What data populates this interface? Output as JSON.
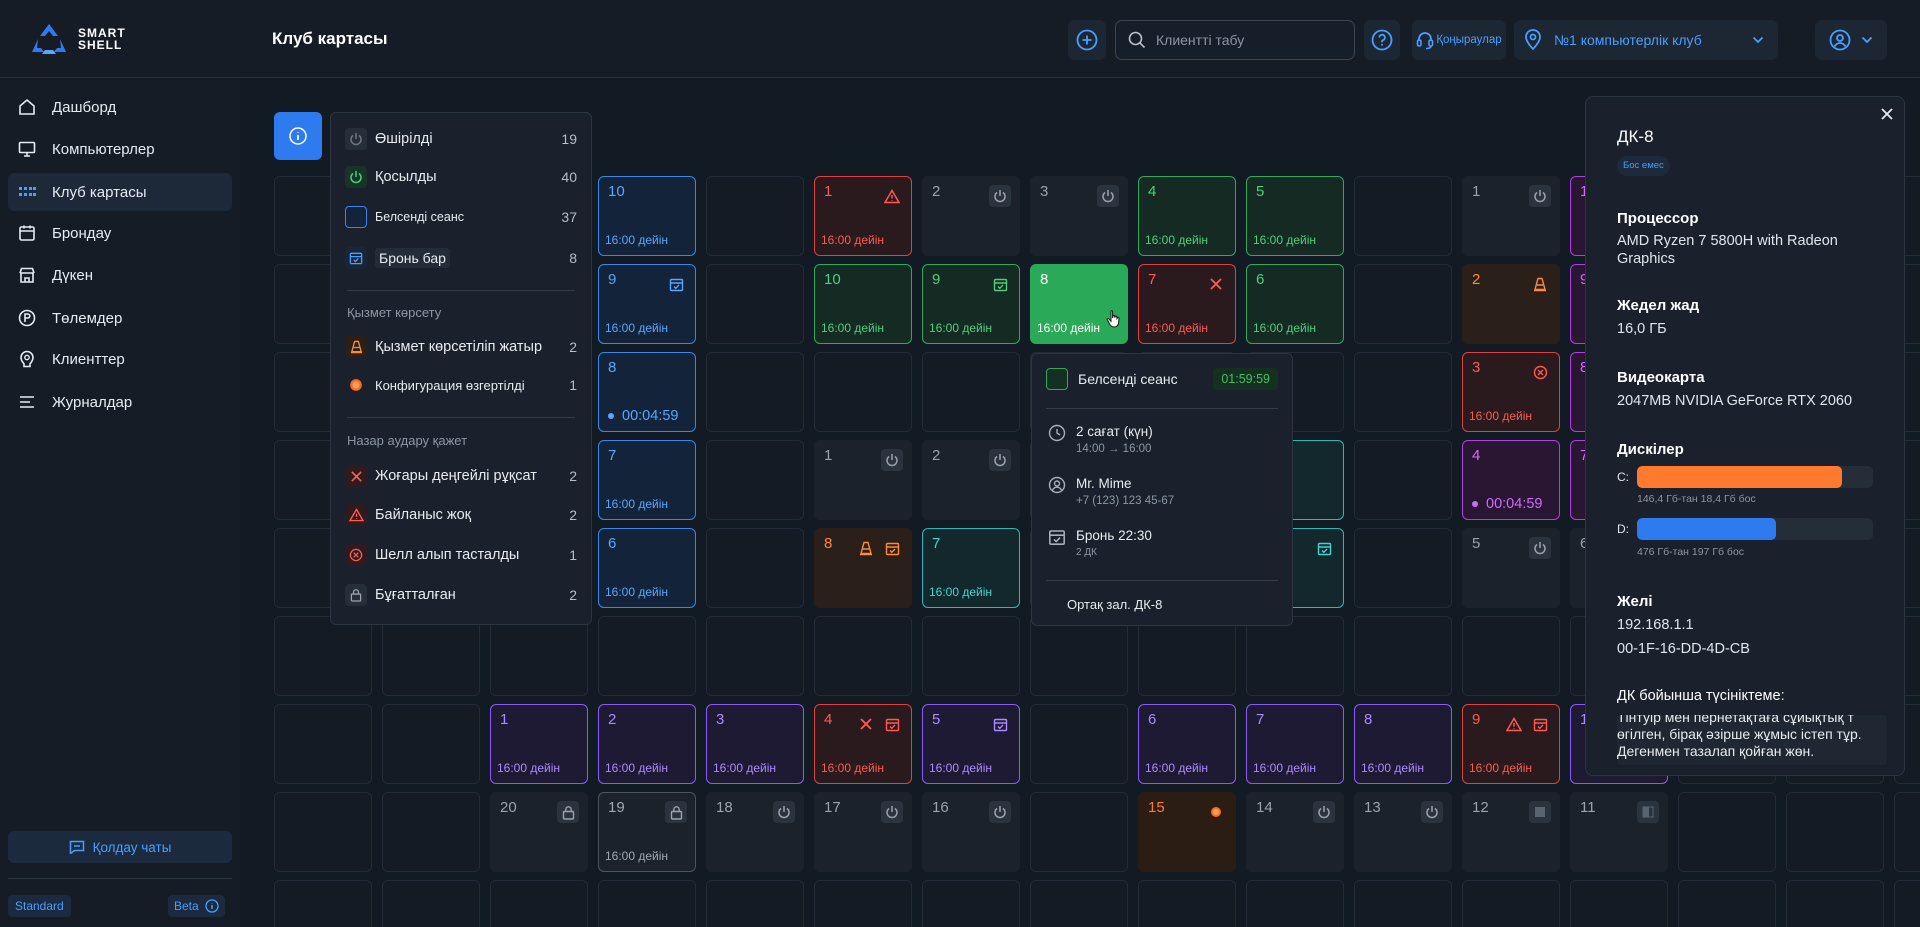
{
  "topbar": {
    "logo_line1": "SMART",
    "logo_line2": "SHELL",
    "title": "Клуб картасы",
    "search_placeholder": "Клиентті табу",
    "calls_label": "Қоңыраулар",
    "club_name": "№1 компьютерлік клуб"
  },
  "sidebar": {
    "items": [
      {
        "label": "Дашборд",
        "icon": "home-icon"
      },
      {
        "label": "Компьютерлер",
        "icon": "monitor-icon"
      },
      {
        "label": "Клуб картасы",
        "icon": "grid-icon"
      },
      {
        "label": "Брондау",
        "icon": "calendar-icon"
      },
      {
        "label": "Дүкен",
        "icon": "store-icon"
      },
      {
        "label": "Төлемдер",
        "icon": "payment-icon"
      },
      {
        "label": "Клиенттер",
        "icon": "client-icon"
      },
      {
        "label": "Журналдар",
        "icon": "log-icon"
      }
    ],
    "support_label": "Қолдау чаты",
    "plan_label": "Standard",
    "beta_label": "Beta"
  },
  "legend": {
    "off": {
      "label": "Өшірілді",
      "count": "19"
    },
    "on": {
      "label": "Қосылды",
      "count": "40"
    },
    "active": {
      "label": "Белсенді сеанс",
      "count": "37"
    },
    "booked": {
      "label": "Бронь бар",
      "count": "8"
    },
    "service_title": "Қызмет көрсету",
    "serviced": {
      "label": "Қызмет көрсетіліп жатыр",
      "count": "2"
    },
    "config": {
      "label": "Конфигурация өзгертілді",
      "count": "1"
    },
    "attention_title": "Назар аудару қажет",
    "high_priv": {
      "label": "Жоғары деңгейлі рұқсат",
      "count": "2"
    },
    "no_conn": {
      "label": "Байланыс жоқ",
      "count": "2"
    },
    "shell_removed": {
      "label": "Шелл алып тасталды",
      "count": "1"
    },
    "locked": {
      "label": "Бұғатталған",
      "count": "2"
    }
  },
  "popup": {
    "status": "Белсенді сеанс",
    "timer": "01:59:59",
    "duration": "2 сағат (күн)",
    "time_range": "14:00 → 16:00",
    "client_name": "Mr. Mime",
    "client_phone": "+7 (123) 123 45-67",
    "booking": "Бронь 22:30",
    "booking_sub": "2 ДК",
    "location": "Ортақ зал. ДК-8"
  },
  "detail": {
    "title": "ДК-8",
    "badge": "Бос емес",
    "cpu_label": "Процессор",
    "cpu_line1": "AMD Ryzen 7 5800H with Radeon",
    "cpu_line2": "Graphics",
    "ram_label": "Жедел жад",
    "ram_value": "16,0 ГБ",
    "gpu_label": "Видеокарта",
    "gpu_value": "2047MB NVIDIA GeForce RTX 2060",
    "disks_label": "Дискілер",
    "disk_c_letter": "C:",
    "disk_c_info": "146,4 Гб-тан 18,4 Гб бос",
    "disk_c_fill": 0.87,
    "disk_d_letter": "D:",
    "disk_d_info": "476 Гб-тан 197 Гб бос",
    "disk_d_fill": 0.59,
    "net_label": "Желі",
    "ip": "192.168.1.1",
    "mac": "00-1F-16-DD-4D-CB",
    "comment_label": "ДК бойынша түсініктеме:",
    "comment_line1": "Тінтуір мен пернетақтаға сұйықтық т",
    "comment_line2": "өгілген, бірақ әзірше жұмыс істеп тұр.",
    "comment_line3": "Дегенмен тазалап қойған жөн."
  },
  "pcs": {
    "r1c4": {
      "num": "10",
      "sub": "16:00 дейін"
    },
    "r1c6": {
      "num": "1",
      "sub": "16:00 дейін"
    },
    "r1c7": {
      "num": "2"
    },
    "r1c8": {
      "num": "3"
    },
    "r1c9": {
      "num": "4",
      "sub": "16:00 дейін"
    },
    "r1c10": {
      "num": "5",
      "sub": "16:00 дейін"
    },
    "r1c12": {
      "num": "1"
    },
    "r1c13": {
      "num": "1"
    },
    "r2c4": {
      "num": "9",
      "sub": "16:00 дейін"
    },
    "r2c6": {
      "num": "10",
      "sub": "16:00 дейін"
    },
    "r2c7": {
      "num": "9",
      "sub": "16:00 дейін"
    },
    "r2c8": {
      "num": "8",
      "sub": "16:00 дейін"
    },
    "r2c9": {
      "num": "7",
      "sub": "16:00 дейін"
    },
    "r2c10": {
      "num": "6",
      "sub": "16:00 дейін"
    },
    "r2c12": {
      "num": "2"
    },
    "r2c13": {
      "num": "9"
    },
    "r3c4": {
      "num": "8",
      "timer": "00:04:59"
    },
    "r3c12": {
      "num": "3",
      "sub": "16:00 дейін"
    },
    "r3c13": {
      "num": "8"
    },
    "r4c4": {
      "num": "7",
      "sub": "16:00 дейін"
    },
    "r4c6": {
      "num": "1"
    },
    "r4c7": {
      "num": "2"
    },
    "r4c10": {
      "timer": "00"
    },
    "r4c12": {
      "num": "4",
      "timer": "00:04:59"
    },
    "r4c13": {
      "num": "7"
    },
    "r5c4": {
      "num": "6",
      "sub": "16:00 дейін"
    },
    "r5c6": {
      "num": "8"
    },
    "r5c7": {
      "num": "7",
      "sub": "16:00 дейін"
    },
    "r5c10": {
      "sub": "00"
    },
    "r5c12": {
      "num": "5"
    },
    "r5c13": {
      "num": "6"
    },
    "r7c2": {
      "num": "1",
      "sub": "16:00 дейін"
    },
    "r7c3": {
      "num": "2",
      "sub": "16:00 дейін"
    },
    "r7c4": {
      "num": "3",
      "sub": "16:00 дейін"
    },
    "r7c5": {
      "num": "4",
      "sub": "16:00 дейін"
    },
    "r7c6": {
      "num": "5",
      "sub": "16:00 дейін"
    },
    "r7c8": {
      "num": "6",
      "sub": "16:00 дейін"
    },
    "r7c9": {
      "num": "7",
      "sub": "16:00 дейін"
    },
    "r7c10": {
      "num": "8",
      "sub": "16:00 дейін"
    },
    "r7c11": {
      "num": "9",
      "sub": "16:00 дейін"
    },
    "r7c12": {
      "num": "1"
    },
    "r8c2": {
      "num": "20"
    },
    "r8c3": {
      "num": "19",
      "sub": "16:00 дейін"
    },
    "r8c4": {
      "num": "18"
    },
    "r8c5": {
      "num": "17"
    },
    "r8c6": {
      "num": "16"
    },
    "r8c8": {
      "num": "15"
    },
    "r8c9": {
      "num": "14"
    },
    "r8c10": {
      "num": "13"
    },
    "r8c11": {
      "num": "12"
    },
    "r8c12": {
      "num": "11"
    }
  },
  "colors": {
    "accent": "#2e7bf0",
    "green": "#2fa85a",
    "red": "#e0403f",
    "purple": "#8a5cf6",
    "orange": "#ff8a3d",
    "teal": "#2bb8b6",
    "magenta": "#b03fe0"
  }
}
